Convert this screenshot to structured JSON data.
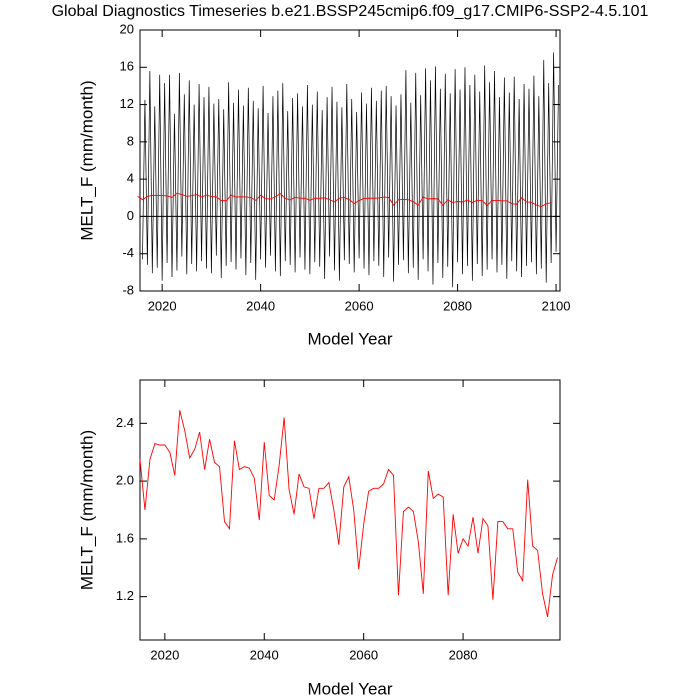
{
  "chart_data": [
    {
      "type": "line",
      "title": "Global Diagnostics Timeseries b.e21.BSSP245cmip6.f09_g17.CMIP6-SSP2-4.5.101",
      "x_label": "Model Year",
      "y_label": "MELT_F (mm/month)",
      "xlim": [
        2015.5,
        2100.8
      ],
      "xticks": [
        2020,
        2040,
        2060,
        2080,
        2100
      ],
      "ylim": [
        -8,
        20
      ],
      "yticks": [
        -8,
        -4,
        0,
        4,
        8,
        12,
        16,
        20
      ],
      "zero_line": true,
      "series": [
        {
          "color": "#000000",
          "x": [
            2016,
            2016.5,
            2017,
            2017.5,
            2018,
            2018.5,
            2019,
            2019.5,
            2020,
            2020.5,
            2021,
            2021.5,
            2022,
            2022.5,
            2023,
            2023.5,
            2024,
            2024.5,
            2025,
            2025.5,
            2026,
            2026.5,
            2027,
            2027.5,
            2028,
            2028.5,
            2029,
            2029.5,
            2030,
            2030.5,
            2031,
            2031.5,
            2032,
            2032.5,
            2033,
            2033.5,
            2034,
            2034.5,
            2035,
            2035.5,
            2036,
            2036.5,
            2037,
            2037.5,
            2038,
            2038.5,
            2039,
            2039.5,
            2040,
            2040.5,
            2041,
            2041.5,
            2042,
            2042.5,
            2043,
            2043.5,
            2044,
            2044.5,
            2045,
            2045.5,
            2046,
            2046.5,
            2047,
            2047.5,
            2048,
            2048.5,
            2049,
            2049.5,
            2050,
            2050.5,
            2051,
            2051.5,
            2052,
            2052.5,
            2053,
            2053.5,
            2054,
            2054.5,
            2055,
            2055.5,
            2056,
            2056.5,
            2057,
            2057.5,
            2058,
            2058.5,
            2059,
            2059.5,
            2060,
            2060.5,
            2061,
            2061.5,
            2062,
            2062.5,
            2063,
            2063.5,
            2064,
            2064.5,
            2065,
            2065.5,
            2066,
            2066.5,
            2067,
            2067.5,
            2068,
            2068.5,
            2069,
            2069.5,
            2070,
            2070.5,
            2071,
            2071.5,
            2072,
            2072.5,
            2073,
            2073.5,
            2074,
            2074.5,
            2075,
            2075.5,
            2076,
            2076.5,
            2077,
            2077.5,
            2078,
            2078.5,
            2079,
            2079.5,
            2080,
            2080.5,
            2081,
            2081.5,
            2082,
            2082.5,
            2083,
            2083.5,
            2084,
            2084.5,
            2085,
            2085.5,
            2086,
            2086.5,
            2087,
            2087.5,
            2088,
            2088.5,
            2089,
            2089.5,
            2090,
            2090.5,
            2091,
            2091.5,
            2092,
            2092.5,
            2093,
            2093.5,
            2094,
            2094.5,
            2095,
            2095.5,
            2096,
            2096.5,
            2097,
            2097.5,
            2098,
            2098.5,
            2099,
            2099.5,
            2100,
            2100.5
          ],
          "values": [
            -4.6,
            12.5,
            -5.2,
            15.6,
            -6.1,
            11.8,
            -5.5,
            15.2,
            -6.9,
            14.3,
            -5.0,
            15.2,
            -6.5,
            11.0,
            -5.8,
            15.4,
            -4.3,
            13.1,
            -6.2,
            14.6,
            -5.1,
            12.0,
            -5.9,
            14.2,
            -4.8,
            12.8,
            -5.6,
            13.9,
            -6.1,
            12.1,
            -4.2,
            12.6,
            -6.6,
            11.5,
            -5.3,
            14.4,
            -4.9,
            12.2,
            -5.7,
            13.6,
            -4.5,
            11.9,
            -6.3,
            13.8,
            -5.0,
            12.4,
            -6.8,
            11.6,
            -4.6,
            14.0,
            -5.5,
            11.1,
            -4.2,
            12.9,
            -5.9,
            13.5,
            -6.4,
            14.3,
            -4.8,
            11.3,
            -5.2,
            12.7,
            -6.0,
            13.2,
            -4.4,
            11.8,
            -5.7,
            14.1,
            -6.2,
            12.0,
            -4.9,
            13.4,
            -5.4,
            11.4,
            -6.7,
            12.8,
            -4.3,
            13.9,
            -5.8,
            12.3,
            -6.9,
            11.7,
            -4.7,
            14.2,
            -5.1,
            12.6,
            -6.0,
            11.2,
            -4.5,
            13.3,
            -5.6,
            12.1,
            -6.3,
            13.8,
            -4.8,
            12.4,
            -5.3,
            13.5,
            -6.5,
            14.0,
            -4.4,
            12.9,
            -7.0,
            11.9,
            -5.2,
            13.1,
            -4.7,
            15.7,
            -6.1,
            12.2,
            -5.5,
            15.4,
            -6.8,
            13.0,
            -4.6,
            15.9,
            -5.9,
            14.6,
            -7.3,
            16.1,
            -5.0,
            13.7,
            -6.6,
            15.3,
            -5.4,
            13.2,
            -7.6,
            15.8,
            -4.9,
            13.6,
            -6.2,
            16.0,
            -5.3,
            14.1,
            -6.9,
            15.2,
            -5.1,
            13.4,
            -6.4,
            16.2,
            -5.7,
            14.4,
            -4.6,
            15.6,
            -6.0,
            12.8,
            -5.2,
            14.9,
            -6.7,
            13.3,
            -4.8,
            15.0,
            -5.9,
            12.6,
            -6.5,
            14.2,
            -5.3,
            13.7,
            -4.9,
            15.1,
            -6.2,
            12.9,
            -5.6,
            16.8,
            -7.1,
            14.3,
            -5.0,
            17.6,
            -3.8,
            14.1
          ]
        },
        {
          "color": "#ff0000",
          "x": [
            2015,
            2016,
            2017,
            2018,
            2019,
            2020,
            2021,
            2022,
            2023,
            2024,
            2025,
            2026,
            2027,
            2028,
            2029,
            2030,
            2031,
            2032,
            2033,
            2034,
            2035,
            2036,
            2037,
            2038,
            2039,
            2040,
            2041,
            2042,
            2043,
            2044,
            2045,
            2046,
            2047,
            2048,
            2049,
            2050,
            2051,
            2052,
            2053,
            2054,
            2055,
            2056,
            2057,
            2058,
            2059,
            2060,
            2061,
            2062,
            2063,
            2064,
            2065,
            2066,
            2067,
            2068,
            2069,
            2070,
            2071,
            2072,
            2073,
            2074,
            2075,
            2076,
            2077,
            2078,
            2079,
            2080,
            2081,
            2082,
            2083,
            2084,
            2085,
            2086,
            2087,
            2088,
            2089,
            2090,
            2091,
            2092,
            2093,
            2094,
            2095,
            2096,
            2097,
            2098,
            2099
          ],
          "values": [
            2.15,
            1.8,
            2.15,
            2.26,
            2.25,
            2.25,
            2.2,
            2.04,
            2.49,
            2.35,
            2.16,
            2.22,
            2.34,
            2.08,
            2.29,
            2.13,
            2.1,
            1.72,
            1.67,
            2.28,
            2.08,
            2.1,
            2.09,
            2.02,
            1.73,
            2.27,
            1.9,
            1.87,
            2.11,
            2.44,
            1.94,
            1.77,
            2.05,
            1.96,
            1.95,
            1.74,
            1.95,
            1.95,
            1.99,
            1.8,
            1.56,
            1.96,
            2.03,
            1.8,
            1.39,
            1.7,
            1.93,
            1.95,
            1.95,
            1.98,
            2.08,
            2.04,
            1.21,
            1.79,
            1.82,
            1.79,
            1.58,
            1.22,
            2.07,
            1.88,
            1.91,
            1.89,
            1.21,
            1.77,
            1.5,
            1.6,
            1.55,
            1.75,
            1.5,
            1.74,
            1.69,
            1.18,
            1.72,
            1.72,
            1.67,
            1.67,
            1.37,
            1.31,
            2.01,
            1.55,
            1.52,
            1.22,
            1.06,
            1.35,
            1.47
          ]
        }
      ]
    },
    {
      "type": "line",
      "x_label": "Model Year",
      "y_label": "MELT_F (mm/month)",
      "xlim": [
        2015,
        2099.5
      ],
      "xticks": [
        2020,
        2040,
        2060,
        2080
      ],
      "ylim": [
        0.9,
        2.7
      ],
      "yticks": [
        1.2,
        1.6,
        {
          "value": 2,
          "label": "2.0"
        },
        2.4
      ],
      "series": [
        {
          "color": "#ff0000",
          "x": [
            2015,
            2016,
            2017,
            2018,
            2019,
            2020,
            2021,
            2022,
            2023,
            2024,
            2025,
            2026,
            2027,
            2028,
            2029,
            2030,
            2031,
            2032,
            2033,
            2034,
            2035,
            2036,
            2037,
            2038,
            2039,
            2040,
            2041,
            2042,
            2043,
            2044,
            2045,
            2046,
            2047,
            2048,
            2049,
            2050,
            2051,
            2052,
            2053,
            2054,
            2055,
            2056,
            2057,
            2058,
            2059,
            2060,
            2061,
            2062,
            2063,
            2064,
            2065,
            2066,
            2067,
            2068,
            2069,
            2070,
            2071,
            2072,
            2073,
            2074,
            2075,
            2076,
            2077,
            2078,
            2079,
            2080,
            2081,
            2082,
            2083,
            2084,
            2085,
            2086,
            2087,
            2088,
            2089,
            2090,
            2091,
            2092,
            2093,
            2094,
            2095,
            2096,
            2097,
            2098,
            2099
          ],
          "values": [
            2.15,
            1.8,
            2.15,
            2.26,
            2.25,
            2.25,
            2.2,
            2.04,
            2.49,
            2.35,
            2.16,
            2.22,
            2.34,
            2.08,
            2.29,
            2.13,
            2.1,
            1.72,
            1.67,
            2.28,
            2.08,
            2.1,
            2.09,
            2.02,
            1.73,
            2.27,
            1.9,
            1.87,
            2.11,
            2.44,
            1.94,
            1.77,
            2.05,
            1.96,
            1.95,
            1.74,
            1.95,
            1.95,
            1.99,
            1.8,
            1.56,
            1.96,
            2.03,
            1.8,
            1.39,
            1.7,
            1.93,
            1.95,
            1.95,
            1.98,
            2.08,
            2.04,
            1.21,
            1.79,
            1.82,
            1.79,
            1.58,
            1.22,
            2.07,
            1.88,
            1.91,
            1.89,
            1.21,
            1.77,
            1.5,
            1.6,
            1.55,
            1.75,
            1.5,
            1.74,
            1.69,
            1.18,
            1.72,
            1.72,
            1.67,
            1.67,
            1.37,
            1.31,
            2.01,
            1.55,
            1.52,
            1.22,
            1.06,
            1.35,
            1.47
          ]
        }
      ]
    }
  ]
}
